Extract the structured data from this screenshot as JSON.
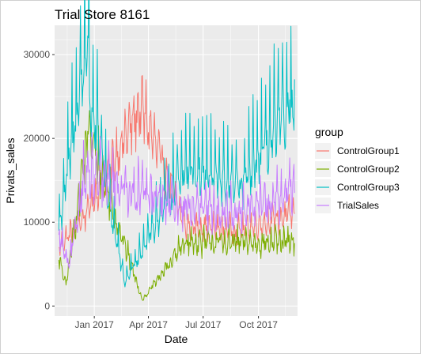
{
  "chart_data": {
    "type": "line",
    "title": "Trial Store  8161",
    "xlabel": "Date",
    "ylabel": "Privats_sales",
    "x_range": [
      "2016-10-27",
      "2017-12-05"
    ],
    "x_ticks": [
      {
        "date": "2017-01-01",
        "label": "Jan 2017"
      },
      {
        "date": "2017-04-01",
        "label": "Apr 2017"
      },
      {
        "date": "2017-07-01",
        "label": "Jul 2017"
      },
      {
        "date": "2017-10-01",
        "label": "Oct 2017"
      }
    ],
    "ylim": [
      -1200,
      33500
    ],
    "y_ticks": [
      0,
      10000,
      20000,
      30000
    ],
    "grid": true,
    "legend": {
      "title": "group",
      "placement": "right"
    },
    "date_range": [
      "2016-11-03",
      "2017-11-30"
    ],
    "series": [
      {
        "name": "ControlGroup1",
        "color": "#F8766D",
        "key_points": [
          {
            "date": "2016-11-03",
            "value": 7000
          },
          {
            "date": "2016-12-15",
            "value": 10500
          },
          {
            "date": "2017-03-20",
            "value": 23700
          },
          {
            "date": "2017-06-01",
            "value": 9500
          },
          {
            "date": "2017-09-01",
            "value": 9000
          },
          {
            "date": "2017-11-30",
            "value": 11000
          }
        ]
      },
      {
        "name": "ControlGroup2",
        "color": "#7CAE00",
        "key_points": [
          {
            "date": "2016-11-03",
            "value": 5500
          },
          {
            "date": "2016-11-15",
            "value": 2500
          },
          {
            "date": "2016-12-22",
            "value": 20500
          },
          {
            "date": "2017-03-22",
            "value": 700
          },
          {
            "date": "2017-06-01",
            "value": 7500
          },
          {
            "date": "2017-11-30",
            "value": 7500
          }
        ]
      },
      {
        "name": "ControlGroup3",
        "color": "#00BFC4",
        "key_points": [
          {
            "date": "2016-11-03",
            "value": 9000
          },
          {
            "date": "2016-12-22",
            "value": 32000
          },
          {
            "date": "2016-12-24",
            "value": 25000
          },
          {
            "date": "2017-02-20",
            "value": 2700
          },
          {
            "date": "2017-06-01",
            "value": 16500
          },
          {
            "date": "2017-09-01",
            "value": 14000
          },
          {
            "date": "2017-11-25",
            "value": 23700
          }
        ]
      },
      {
        "name": "TrialSales",
        "color": "#C77CFF",
        "key_points": [
          {
            "date": "2016-11-03",
            "value": 8500
          },
          {
            "date": "2016-11-20",
            "value": 4500
          },
          {
            "date": "2016-12-15",
            "value": 15500
          },
          {
            "date": "2017-06-01",
            "value": 11500
          },
          {
            "date": "2017-09-01",
            "value": 11000
          },
          {
            "date": "2017-11-30",
            "value": 13500
          }
        ]
      }
    ]
  }
}
